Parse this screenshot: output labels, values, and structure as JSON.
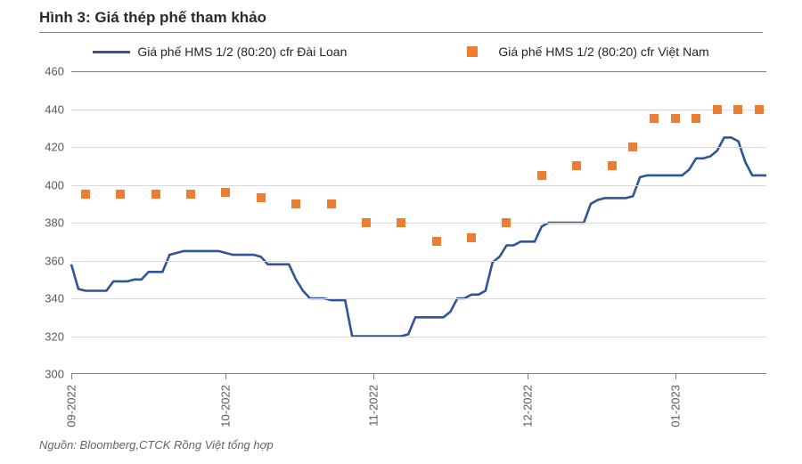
{
  "title": "Hình 3: Giá thép phế tham khảo",
  "source": "Nguồn: Bloomberg,CTCK Rồng Việt tổng hợp",
  "legend": {
    "series1_label": "Giá phế HMS 1/2 (80:20) cfr Đài Loan",
    "series2_label": "Giá phế HMS 1/2 (80:20) cfr Việt Nam"
  },
  "chart": {
    "type": "line+scatter",
    "background_color": "#ffffff",
    "grid_color": "#d9d9d9",
    "axis_color": "#7f7f7f",
    "text_color": "#595959",
    "ylim": [
      300,
      460
    ],
    "ytick_step": 20,
    "ytick_labels": [
      "300",
      "320",
      "340",
      "360",
      "380",
      "400",
      "420",
      "440",
      "460"
    ],
    "x_n": 100,
    "xticks": [
      {
        "pos": 0,
        "label": "09-2022"
      },
      {
        "pos": 22,
        "label": "10-2022"
      },
      {
        "pos": 43,
        "label": "11-2022"
      },
      {
        "pos": 65,
        "label": "12-2022"
      },
      {
        "pos": 86,
        "label": "01-2023"
      }
    ],
    "series_line": {
      "color": "#305496",
      "width": 2.6,
      "values": [
        358,
        345,
        344,
        344,
        344,
        344,
        349,
        349,
        349,
        350,
        350,
        354,
        354,
        354,
        363,
        364,
        365,
        365,
        365,
        365,
        365,
        365,
        364,
        363,
        363,
        363,
        363,
        362,
        358,
        358,
        358,
        358,
        350,
        344,
        340,
        340,
        340,
        339,
        339,
        339,
        320,
        320,
        320,
        320,
        320,
        320,
        320,
        320,
        321,
        330,
        330,
        330,
        330,
        330,
        333,
        340,
        340,
        342,
        342,
        344,
        359,
        362,
        368,
        368,
        370,
        370,
        370,
        378,
        380,
        380,
        380,
        380,
        380,
        380,
        390,
        392,
        393,
        393,
        393,
        393,
        394,
        404,
        405,
        405,
        405,
        405,
        405,
        405,
        408,
        414,
        414,
        415,
        418,
        425,
        425,
        423,
        412,
        405,
        405,
        405
      ]
    },
    "series_markers": {
      "color": "#ed7d31",
      "size": 10,
      "points": [
        {
          "x": 2,
          "y": 395
        },
        {
          "x": 7,
          "y": 395
        },
        {
          "x": 12,
          "y": 395
        },
        {
          "x": 17,
          "y": 395
        },
        {
          "x": 22,
          "y": 396
        },
        {
          "x": 27,
          "y": 393
        },
        {
          "x": 32,
          "y": 390
        },
        {
          "x": 37,
          "y": 390
        },
        {
          "x": 42,
          "y": 380
        },
        {
          "x": 47,
          "y": 380
        },
        {
          "x": 52,
          "y": 370
        },
        {
          "x": 57,
          "y": 372
        },
        {
          "x": 62,
          "y": 380
        },
        {
          "x": 67,
          "y": 405
        },
        {
          "x": 72,
          "y": 410
        },
        {
          "x": 77,
          "y": 410
        },
        {
          "x": 80,
          "y": 420
        },
        {
          "x": 83,
          "y": 435
        },
        {
          "x": 86,
          "y": 435
        },
        {
          "x": 89,
          "y": 435
        },
        {
          "x": 92,
          "y": 440
        },
        {
          "x": 95,
          "y": 440
        },
        {
          "x": 98,
          "y": 440
        }
      ]
    }
  }
}
